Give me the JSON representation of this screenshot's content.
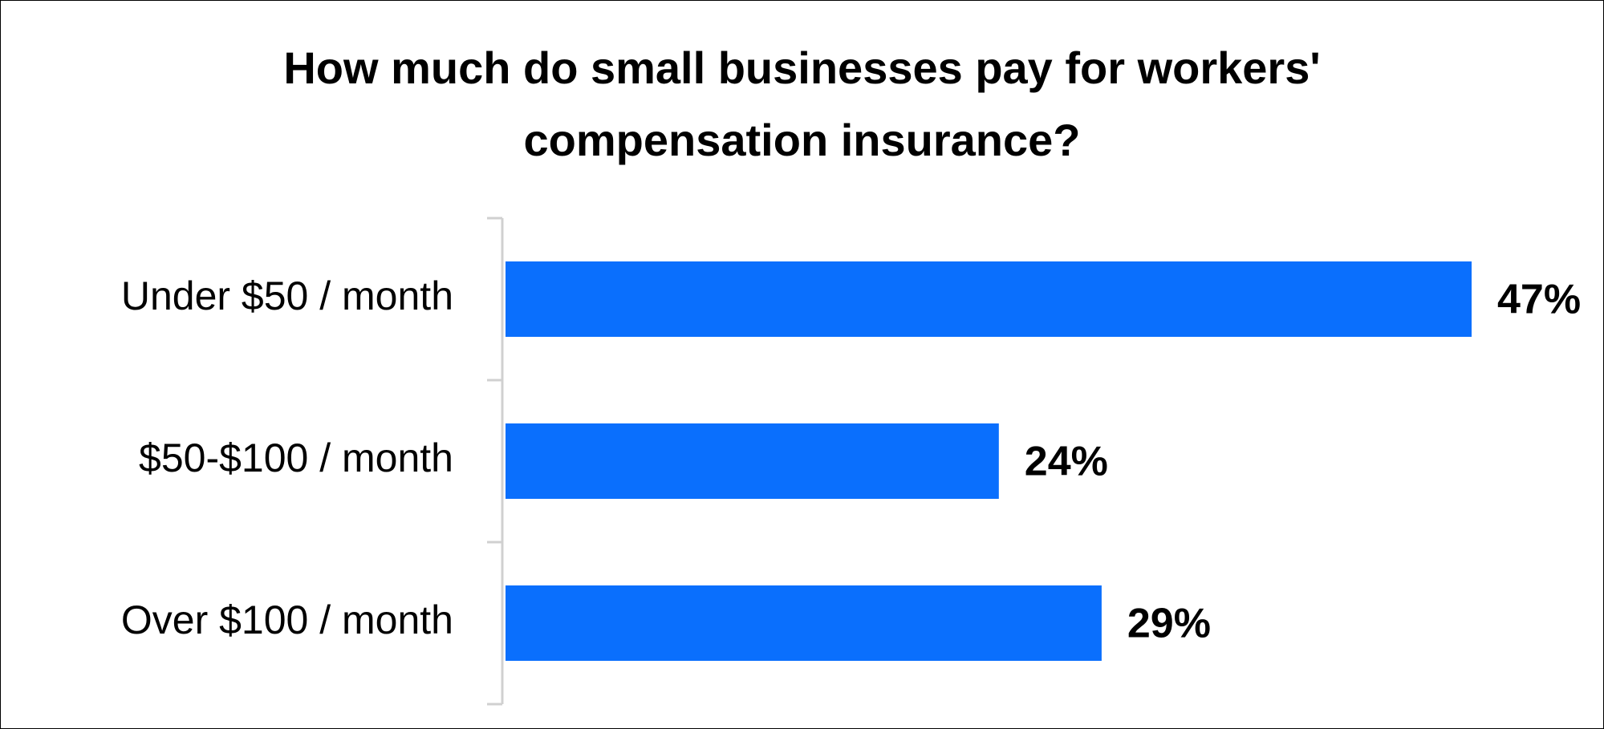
{
  "chart_data": {
    "type": "bar",
    "orientation": "horizontal",
    "title": "How much do small businesses pay for workers' compensation insurance?",
    "categories": [
      "Under $50 / month",
      "$50-$100 / month",
      "Over $100 / month"
    ],
    "values": [
      47,
      24,
      29
    ],
    "value_labels": [
      "47%",
      "24%",
      "29%"
    ],
    "color": "#0a6ffd"
  }
}
